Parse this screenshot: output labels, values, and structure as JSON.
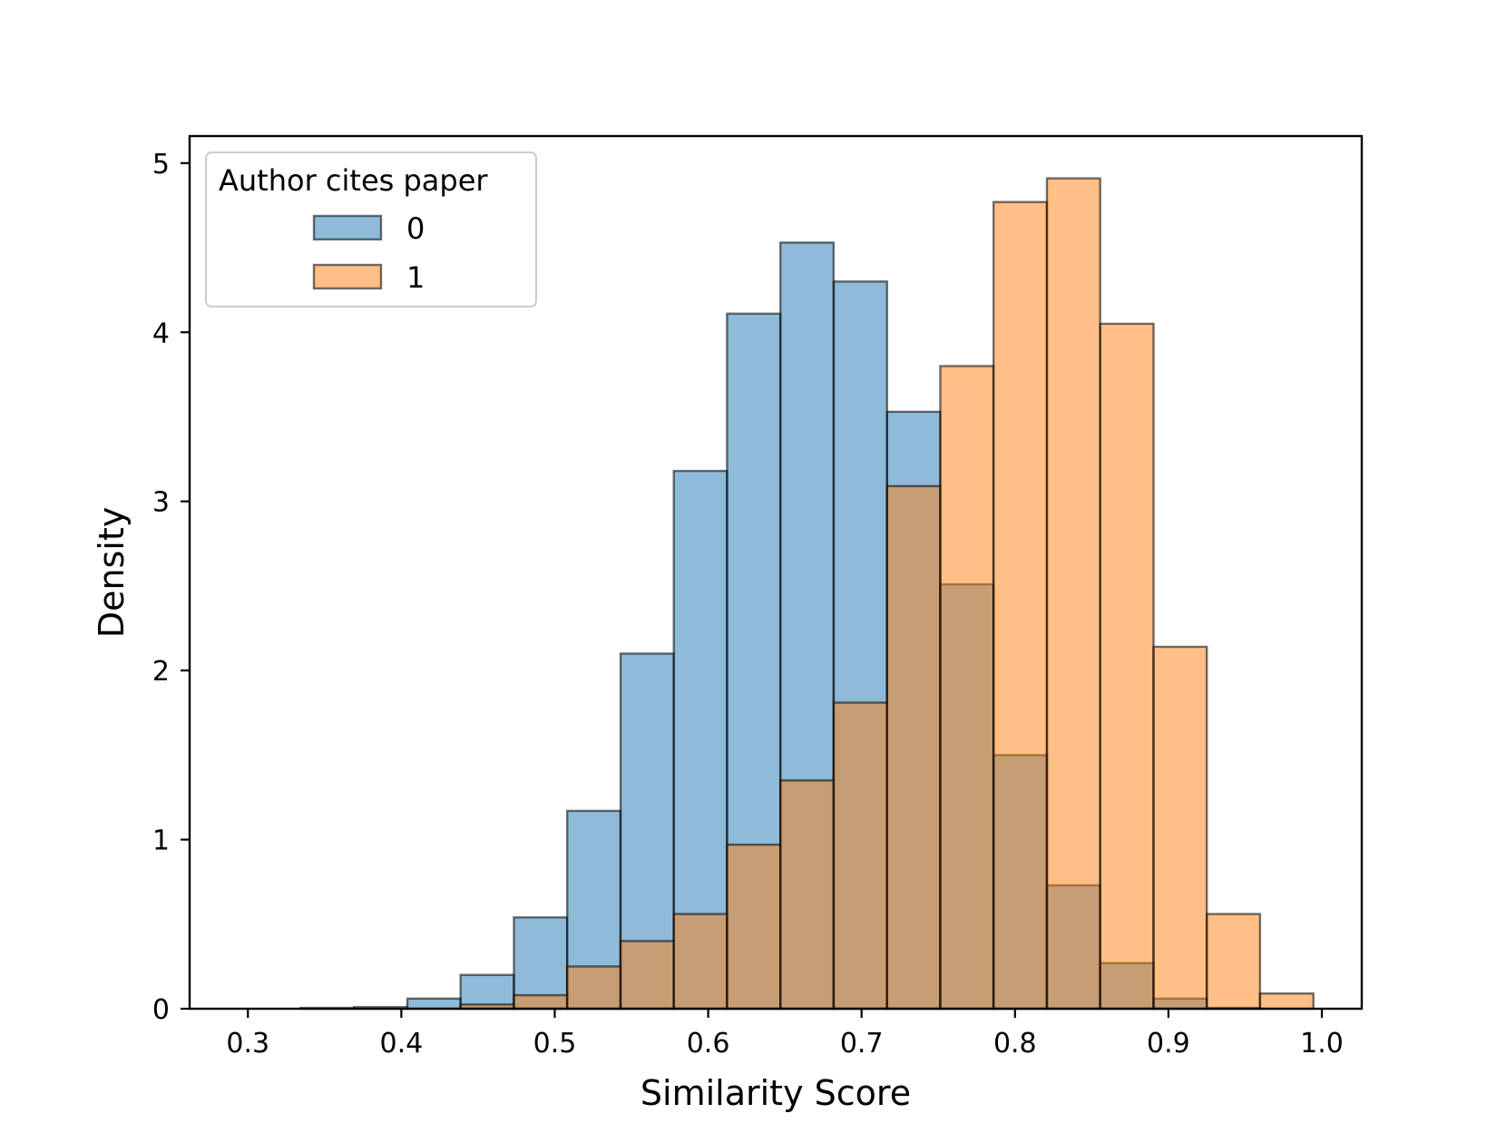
{
  "chart_data": {
    "type": "bar",
    "subtype": "overlapping-histogram",
    "title": "",
    "xlabel": "Similarity Score",
    "ylabel": "Density",
    "xlim": [
      0.262,
      1.026
    ],
    "ylim": [
      0,
      5.16
    ],
    "xticks": [
      "0.3",
      "0.4",
      "0.5",
      "0.6",
      "0.7",
      "0.8",
      "0.9",
      "1.0"
    ],
    "yticks": [
      "0",
      "1",
      "2",
      "3",
      "4",
      "5"
    ],
    "grid": false,
    "bin_edges": [
      0.2997,
      0.3344,
      0.3692,
      0.4039,
      0.4386,
      0.4734,
      0.5081,
      0.5429,
      0.5776,
      0.6123,
      0.6471,
      0.6818,
      0.7166,
      0.7513,
      0.786,
      0.8208,
      0.8555,
      0.8903,
      0.925,
      0.9597,
      0.9945
    ],
    "legend": {
      "title": "Author cites paper",
      "position": "upper-left"
    },
    "series": [
      {
        "name": "0",
        "color": "#1f77b4",
        "opacity": 0.5,
        "values": [
          0.0,
          0.005,
          0.01,
          0.06,
          0.2,
          0.54,
          1.17,
          2.1,
          3.18,
          4.11,
          4.53,
          4.3,
          3.53,
          2.51,
          1.5,
          0.73,
          0.27,
          0.06,
          0.005,
          0.0
        ]
      },
      {
        "name": "1",
        "color": "#ff7f0e",
        "opacity": 0.5,
        "values": [
          0.0,
          0.0,
          0.0,
          0.0,
          0.025,
          0.08,
          0.25,
          0.4,
          0.56,
          0.97,
          1.35,
          1.81,
          3.09,
          3.8,
          4.77,
          4.91,
          4.05,
          2.14,
          0.56,
          0.09
        ]
      }
    ],
    "edge_color": "#000000"
  }
}
